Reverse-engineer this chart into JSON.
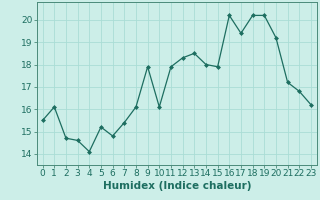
{
  "x": [
    0,
    1,
    2,
    3,
    4,
    5,
    6,
    7,
    8,
    9,
    10,
    11,
    12,
    13,
    14,
    15,
    16,
    17,
    18,
    19,
    20,
    21,
    22,
    23
  ],
  "y": [
    15.5,
    16.1,
    14.7,
    14.6,
    14.1,
    15.2,
    14.8,
    15.4,
    16.1,
    17.9,
    16.1,
    17.9,
    18.3,
    18.5,
    18.0,
    17.9,
    20.2,
    19.4,
    20.2,
    20.2,
    19.2,
    17.2,
    16.8,
    16.2
  ],
  "xlabel": "Humidex (Indice chaleur)",
  "ylim": [
    13.5,
    20.8
  ],
  "xlim": [
    -0.5,
    23.5
  ],
  "yticks": [
    14,
    15,
    16,
    17,
    18,
    19,
    20
  ],
  "xticks": [
    0,
    1,
    2,
    3,
    4,
    5,
    6,
    7,
    8,
    9,
    10,
    11,
    12,
    13,
    14,
    15,
    16,
    17,
    18,
    19,
    20,
    21,
    22,
    23
  ],
  "line_color": "#1d6e60",
  "marker_color": "#1d6e60",
  "bg_color": "#cceee8",
  "grid_color": "#aaddd5",
  "xlabel_fontsize": 7.5,
  "tick_fontsize": 6.5
}
